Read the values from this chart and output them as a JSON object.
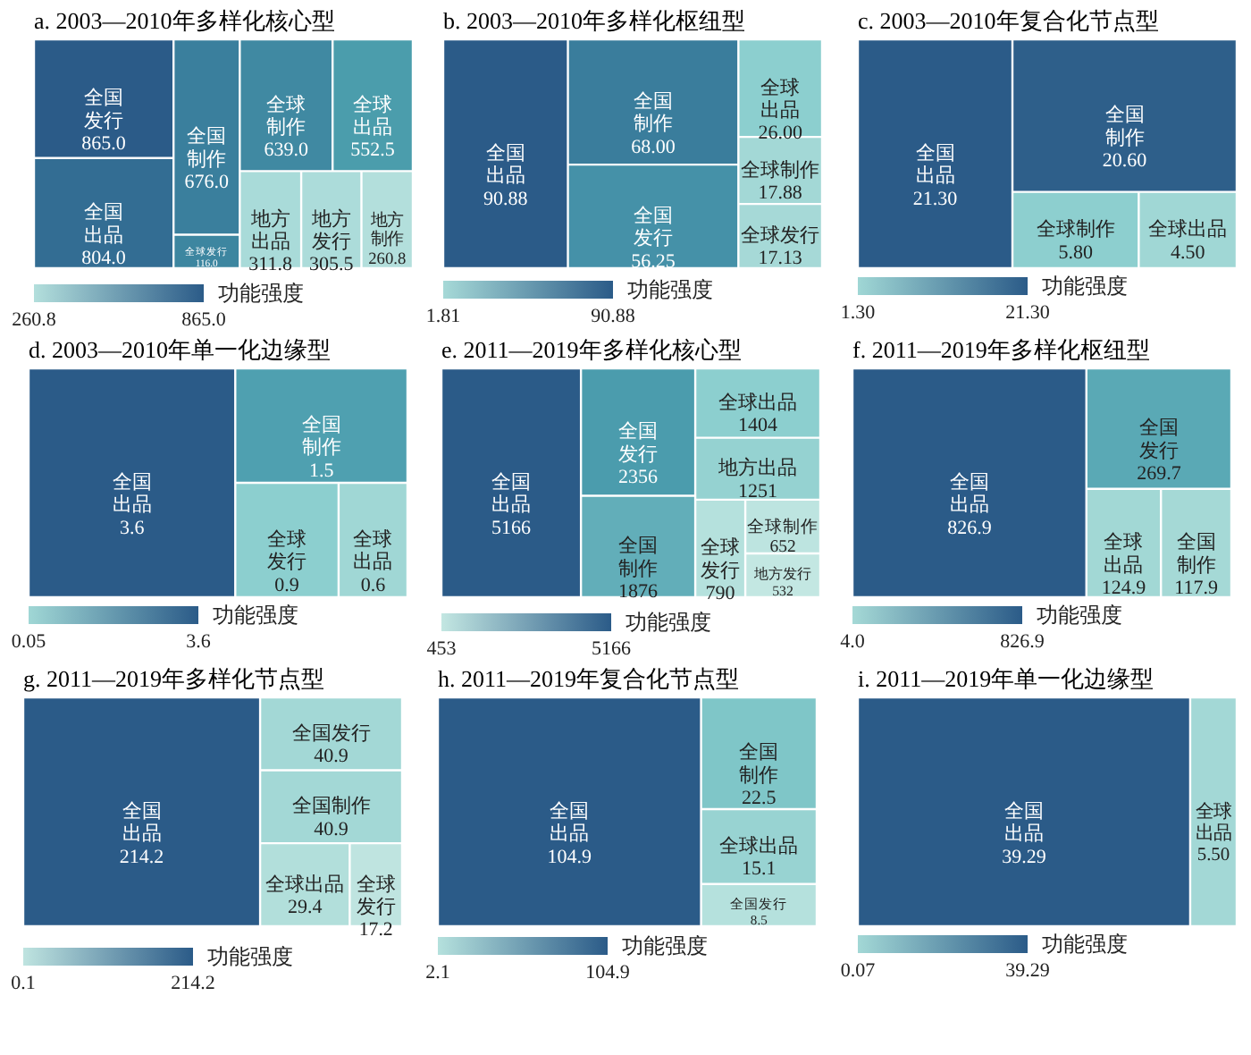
{
  "chart_data": [
    {
      "type": "other",
      "title": "a. 2003—2010年多样化核心型",
      "categories": [
        "全国发行",
        "全国出品",
        "全国制作",
        "全球发行",
        "全球制作",
        "全球出品",
        "地方出品",
        "地方发行",
        "地方制作"
      ],
      "values": [
        865.0,
        804.0,
        676.0,
        116.0,
        639.0,
        552.5,
        311.8,
        305.5,
        260.8
      ],
      "value_labels": [
        "865.0",
        "804.0",
        "676.0",
        "116.0",
        "639.0",
        "552.5",
        "311.8",
        "305.5",
        "260.8"
      ],
      "colors": [
        "#2b5b88",
        "#336d93",
        "#3a7f9d",
        "#3d86a0",
        "#4089a2",
        "#4b9dac",
        "#a9dbd9",
        "#acdcda",
        "#b3dfdc"
      ],
      "annotations": [
        "260.8",
        "865.0"
      ],
      "clabel": "功能强度"
    },
    {
      "type": "other",
      "title": "b. 2003—2010年多样化枢纽型",
      "categories": [
        "全国出品",
        "全国制作",
        "全国发行",
        "全球出品",
        "全球制作",
        "全球发行"
      ],
      "values": [
        90.88,
        68.0,
        56.25,
        26.0,
        17.88,
        17.13
      ],
      "value_labels": [
        "90.88",
        "68.00",
        "56.25",
        "26.00",
        "17.88",
        "17.13"
      ],
      "colors": [
        "#2b5b88",
        "#3a7d9c",
        "#4591a8",
        "#8ccfcf",
        "#a3d8d6",
        "#a6d9d7"
      ],
      "annotations": [
        "1.81",
        "90.88"
      ],
      "clabel": "功能强度"
    },
    {
      "type": "other",
      "title": "c. 2003—2010年复合化节点型",
      "categories": [
        "全国出品",
        "全国制作",
        "全球制作",
        "全球出品"
      ],
      "values": [
        21.3,
        20.6,
        5.8,
        4.5
      ],
      "value_labels": [
        "21.30",
        "20.60",
        "5.80",
        "4.50"
      ],
      "colors": [
        "#2b5b88",
        "#2e5f8a",
        "#8dcfcf",
        "#a0d7d5"
      ],
      "annotations": [
        "1.30",
        "21.30"
      ],
      "clabel": "功能强度"
    },
    {
      "type": "other",
      "title": "d. 2003—2010年单一化边缘型",
      "categories": [
        "全国出品",
        "全国制作",
        "全球发行",
        "全球出品"
      ],
      "values": [
        3.6,
        1.5,
        0.9,
        0.6
      ],
      "value_labels": [
        "3.6",
        "1.5",
        "0.9",
        "0.6"
      ],
      "colors": [
        "#2b5b88",
        "#4fa0b0",
        "#8ccfcf",
        "#a0d7d5"
      ],
      "annotations": [
        "0.05",
        "3.6"
      ],
      "clabel": "功能强度"
    },
    {
      "type": "other",
      "title": "e. 2011—2019年多样化核心型",
      "categories": [
        "全国出品",
        "全国发行",
        "全国制作",
        "全球出品",
        "地方出品",
        "全球发行",
        "全球制作",
        "地方发行"
      ],
      "values": [
        5166,
        2356,
        1876,
        1404,
        1251,
        790,
        652,
        532
      ],
      "value_labels": [
        "5166",
        "2356",
        "1876",
        "1404",
        "1251",
        "790",
        "652",
        "532"
      ],
      "colors": [
        "#2b5b88",
        "#4b9cad",
        "#62aeb9",
        "#8ccfcf",
        "#95d2d1",
        "#b5e1dd",
        "#bde4e0",
        "#c3e7e2"
      ],
      "annotations": [
        "453",
        "5166"
      ],
      "clabel": "功能强度"
    },
    {
      "type": "other",
      "title": "f. 2011—2019年多样化枢纽型",
      "categories": [
        "全国出品",
        "全国发行",
        "全球出品",
        "全国制作"
      ],
      "values": [
        826.9,
        269.7,
        124.9,
        117.9
      ],
      "value_labels": [
        "826.9",
        "269.7",
        "124.9",
        "117.9"
      ],
      "colors": [
        "#2b5b88",
        "#5aa9b5",
        "#a2d8d5",
        "#a5d9d6"
      ],
      "annotations": [
        "4.0",
        "826.9"
      ],
      "clabel": "功能强度"
    },
    {
      "type": "other",
      "title": "g. 2011—2019年多样化节点型",
      "categories": [
        "全国出品",
        "全国发行",
        "全国制作",
        "全球出品",
        "全球发行"
      ],
      "values": [
        214.2,
        40.9,
        40.9,
        29.4,
        17.2
      ],
      "value_labels": [
        "214.2",
        "40.9",
        "40.9",
        "29.4",
        "17.2"
      ],
      "colors": [
        "#2b5b88",
        "#a3d8d6",
        "#a3d8d6",
        "#b2dfdb",
        "#bfe4e0"
      ],
      "annotations": [
        "0.1",
        "214.2"
      ],
      "clabel": "功能强度"
    },
    {
      "type": "other",
      "title": "h. 2011—2019年复合化节点型",
      "categories": [
        "全国出品",
        "全国制作",
        "全球出品",
        "全国发行"
      ],
      "values": [
        104.9,
        22.5,
        15.1,
        8.5
      ],
      "value_labels": [
        "104.9",
        "22.5",
        "15.1",
        "8.5"
      ],
      "colors": [
        "#2b5b88",
        "#7fc6c8",
        "#98d3d2",
        "#b5e1dd"
      ],
      "annotations": [
        "2.1",
        "104.9"
      ],
      "clabel": "功能强度"
    },
    {
      "type": "other",
      "title": "i. 2011—2019年单一化边缘型",
      "categories": [
        "全国出品",
        "全球出品"
      ],
      "values": [
        39.29,
        5.5
      ],
      "value_labels": [
        "39.29",
        "5.50"
      ],
      "colors": [
        "#2b5b88",
        "#a3d8d6"
      ],
      "annotations": [
        "0.07",
        "39.29"
      ],
      "clabel": "功能强度"
    }
  ]
}
